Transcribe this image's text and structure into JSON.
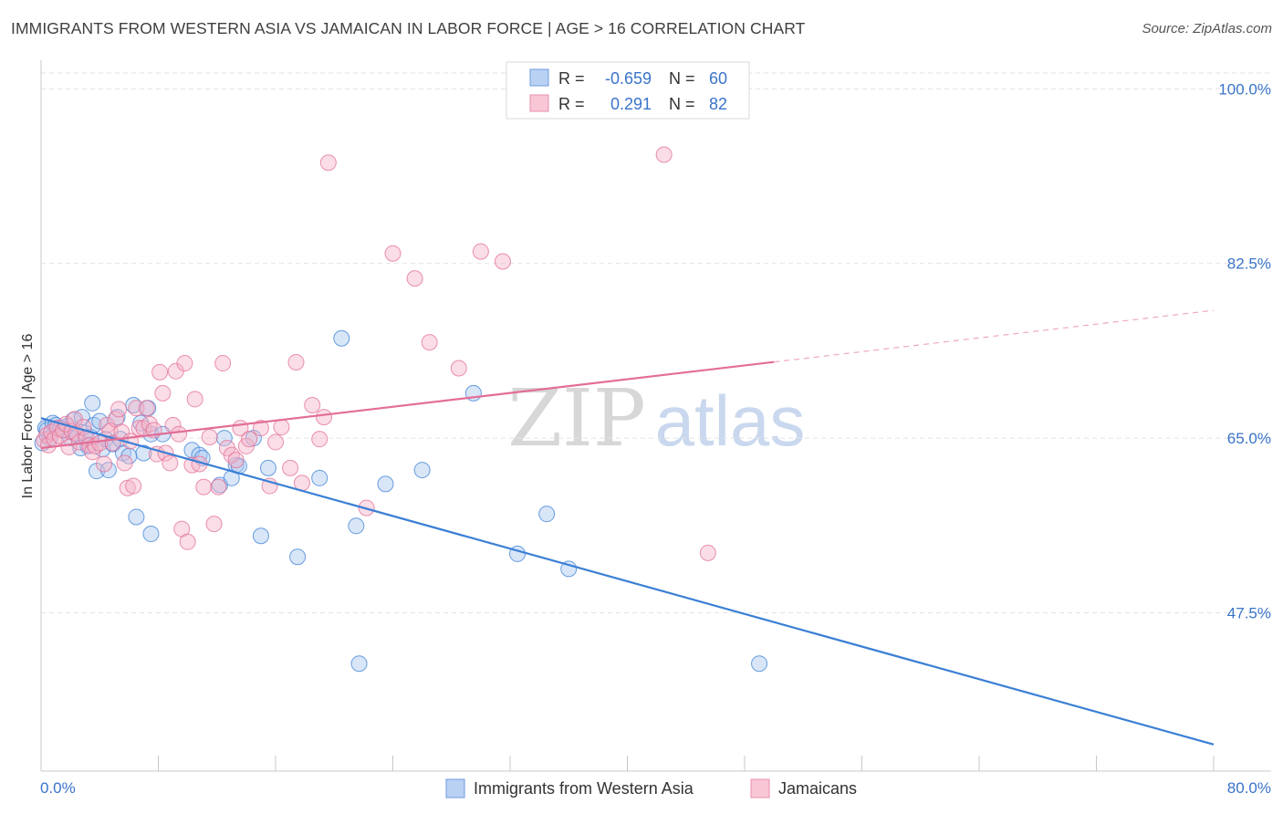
{
  "title": "IMMIGRANTS FROM WESTERN ASIA VS JAMAICAN IN LABOR FORCE | AGE > 16 CORRELATION CHART",
  "source": "Source: ZipAtlas.com",
  "watermark": {
    "zip": "ZIP",
    "atlas": "atlas"
  },
  "colors": {
    "blue": "#3a7fd5",
    "blue_fill": "#a9c7f0",
    "pink": "#e36e96",
    "pink_fill": "#f5b4c8",
    "axis_text": "#3a74c9",
    "grid": "#e3e3e3"
  },
  "legend_box": {
    "rows": [
      {
        "r_label": "R =",
        "r_value": "-0.659",
        "n_label": "N =",
        "n_value": "60"
      },
      {
        "r_label": "R =",
        "r_value": "0.291",
        "n_label": "N =",
        "n_value": "82"
      }
    ]
  },
  "chart_data": {
    "type": "scatter",
    "xlabel": "",
    "ylabel": "In Labor Force | Age > 16",
    "xlim": [
      0,
      80
    ],
    "ylim": [
      33,
      102.5
    ],
    "x_ticks": {
      "left_label": "0.0%",
      "right_label": "80.0%"
    },
    "y_ticks": [
      {
        "value": 100.0,
        "label": "100.0%"
      },
      {
        "value": 82.5,
        "label": "82.5%"
      },
      {
        "value": 65.0,
        "label": "65.0%"
      },
      {
        "value": 47.5,
        "label": "47.5%"
      }
    ],
    "grid": true,
    "legend_position": "bottom-center",
    "series": [
      {
        "name": "Immigrants from Western Asia",
        "color": "#3a7fd5",
        "R": -0.659,
        "N": 60,
        "trend": {
          "x0": 0,
          "y0": 67.0,
          "x1": 80,
          "y1": 34.3,
          "solid_to": 80
        },
        "points": [
          [
            0.1,
            64.5
          ],
          [
            0.3,
            66.0
          ],
          [
            0.4,
            65.8
          ],
          [
            0.6,
            65.0
          ],
          [
            0.8,
            66.5
          ],
          [
            1.0,
            66.3
          ],
          [
            1.3,
            66.0
          ],
          [
            1.6,
            65.8
          ],
          [
            1.8,
            66.2
          ],
          [
            2.0,
            65.0
          ],
          [
            2.2,
            66.8
          ],
          [
            2.5,
            65.2
          ],
          [
            2.7,
            64.0
          ],
          [
            2.8,
            67.1
          ],
          [
            3.0,
            65.5
          ],
          [
            3.2,
            64.2
          ],
          [
            3.4,
            65.1
          ],
          [
            3.5,
            68.5
          ],
          [
            3.6,
            66.3
          ],
          [
            3.8,
            61.7
          ],
          [
            4.0,
            66.7
          ],
          [
            4.2,
            63.9
          ],
          [
            4.4,
            64.9
          ],
          [
            4.6,
            61.8
          ],
          [
            4.9,
            64.4
          ],
          [
            5.2,
            67.1
          ],
          [
            5.4,
            64.9
          ],
          [
            5.6,
            63.5
          ],
          [
            6.0,
            63.2
          ],
          [
            6.3,
            68.3
          ],
          [
            6.5,
            57.1
          ],
          [
            6.8,
            66.5
          ],
          [
            7.0,
            63.5
          ],
          [
            7.3,
            68.0
          ],
          [
            7.5,
            65.4
          ],
          [
            8.3,
            65.4
          ],
          [
            10.3,
            63.8
          ],
          [
            10.8,
            63.3
          ],
          [
            11.0,
            63.0
          ],
          [
            12.2,
            60.3
          ],
          [
            12.5,
            65.0
          ],
          [
            13.0,
            61.0
          ],
          [
            13.3,
            62.3
          ],
          [
            13.5,
            62.2
          ],
          [
            14.5,
            65.0
          ],
          [
            15.0,
            55.2
          ],
          [
            15.5,
            62.0
          ],
          [
            17.5,
            53.1
          ],
          [
            19.0,
            61.0
          ],
          [
            20.5,
            75.0
          ],
          [
            21.5,
            56.2
          ],
          [
            21.7,
            42.4
          ],
          [
            23.5,
            60.4
          ],
          [
            26.0,
            61.8
          ],
          [
            29.5,
            69.5
          ],
          [
            32.5,
            53.4
          ],
          [
            34.5,
            57.4
          ],
          [
            36.0,
            51.9
          ],
          [
            49.0,
            42.4
          ],
          [
            7.5,
            55.4
          ]
        ]
      },
      {
        "name": "Jamaicans",
        "color": "#e36e96",
        "R": 0.291,
        "N": 82,
        "trend": {
          "x0": 0,
          "y0": 64.0,
          "x1": 80,
          "y1": 77.8,
          "solid_to": 50.0
        },
        "points": [
          [
            0.2,
            64.8
          ],
          [
            0.4,
            65.3
          ],
          [
            0.5,
            64.3
          ],
          [
            0.7,
            65.6
          ],
          [
            0.9,
            64.9
          ],
          [
            1.1,
            66.0
          ],
          [
            1.3,
            65.2
          ],
          [
            1.5,
            65.8
          ],
          [
            1.7,
            66.4
          ],
          [
            1.9,
            64.1
          ],
          [
            2.1,
            65.7
          ],
          [
            2.3,
            66.9
          ],
          [
            2.4,
            65.5
          ],
          [
            2.6,
            64.6
          ],
          [
            2.9,
            66.1
          ],
          [
            3.1,
            65.0
          ],
          [
            3.3,
            64.3
          ],
          [
            3.5,
            63.6
          ],
          [
            3.7,
            64.2
          ],
          [
            4.0,
            64.5
          ],
          [
            4.3,
            62.4
          ],
          [
            4.5,
            66.3
          ],
          [
            4.7,
            65.7
          ],
          [
            4.9,
            64.5
          ],
          [
            5.1,
            66.9
          ],
          [
            5.3,
            67.9
          ],
          [
            5.5,
            65.6
          ],
          [
            5.7,
            62.5
          ],
          [
            5.9,
            60.0
          ],
          [
            6.1,
            64.7
          ],
          [
            6.3,
            60.2
          ],
          [
            6.5,
            68.0
          ],
          [
            6.7,
            66.0
          ],
          [
            7.0,
            66.0
          ],
          [
            7.2,
            68.0
          ],
          [
            7.4,
            66.4
          ],
          [
            7.7,
            65.8
          ],
          [
            7.9,
            63.4
          ],
          [
            8.1,
            71.6
          ],
          [
            8.3,
            69.5
          ],
          [
            8.5,
            63.5
          ],
          [
            8.8,
            62.5
          ],
          [
            9.0,
            66.3
          ],
          [
            9.2,
            71.7
          ],
          [
            9.4,
            65.4
          ],
          [
            9.6,
            55.9
          ],
          [
            9.8,
            72.5
          ],
          [
            10.0,
            54.6
          ],
          [
            10.3,
            62.3
          ],
          [
            10.5,
            68.9
          ],
          [
            10.8,
            62.4
          ],
          [
            11.1,
            60.1
          ],
          [
            11.5,
            65.1
          ],
          [
            11.8,
            56.4
          ],
          [
            12.1,
            60.1
          ],
          [
            12.4,
            72.5
          ],
          [
            12.7,
            64.0
          ],
          [
            13.0,
            63.3
          ],
          [
            13.3,
            62.8
          ],
          [
            13.6,
            66.0
          ],
          [
            14.0,
            64.2
          ],
          [
            14.2,
            64.9
          ],
          [
            15.0,
            66.0
          ],
          [
            15.6,
            60.2
          ],
          [
            16.0,
            64.6
          ],
          [
            16.4,
            66.1
          ],
          [
            17.0,
            62.0
          ],
          [
            17.4,
            72.6
          ],
          [
            17.8,
            60.5
          ],
          [
            18.5,
            68.3
          ],
          [
            19.0,
            64.9
          ],
          [
            19.3,
            67.1
          ],
          [
            19.6,
            92.6
          ],
          [
            22.2,
            58.0
          ],
          [
            24.0,
            83.5
          ],
          [
            25.5,
            81.0
          ],
          [
            26.5,
            74.6
          ],
          [
            28.5,
            72.0
          ],
          [
            30.0,
            83.7
          ],
          [
            31.5,
            82.7
          ],
          [
            42.5,
            93.4
          ],
          [
            45.5,
            53.5
          ]
        ]
      }
    ]
  }
}
